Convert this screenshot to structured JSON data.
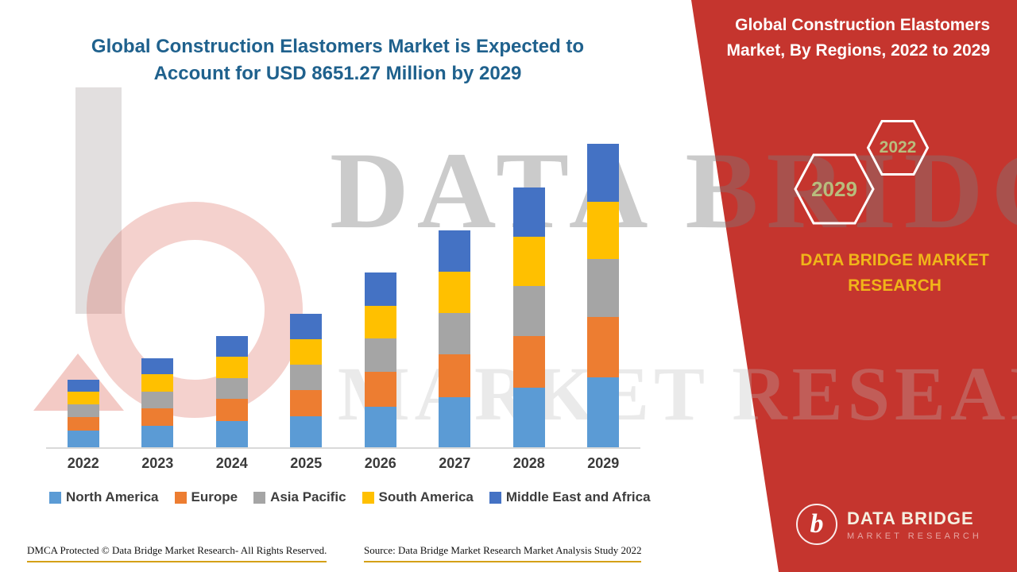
{
  "header": {
    "left_title": "Global Construction Elastomers Market is Expected to Account for USD 8651.27 Million by 2029"
  },
  "chart_data": {
    "type": "bar",
    "stacked": true,
    "unit": "USD Million",
    "categories": [
      "2022",
      "2023",
      "2024",
      "2025",
      "2026",
      "2027",
      "2028",
      "2029"
    ],
    "series": [
      {
        "name": "North America",
        "color": "#5b9bd5",
        "values": [
          480,
          610,
          745,
          880,
          1150,
          1420,
          1700,
          1990
        ]
      },
      {
        "name": "Europe",
        "color": "#ed7d31",
        "values": [
          385,
          505,
          635,
          760,
          1000,
          1240,
          1480,
          1730
        ]
      },
      {
        "name": "Asia Pacific",
        "color": "#a5a5a5",
        "values": [
          365,
          480,
          600,
          725,
          945,
          1175,
          1410,
          1645
        ]
      },
      {
        "name": "South America",
        "color": "#ffc000",
        "values": [
          365,
          480,
          600,
          720,
          945,
          1175,
          1405,
          1645
        ]
      },
      {
        "name": "Middle East and Africa",
        "color": "#4472c4",
        "values": [
          330,
          462,
          591,
          720,
          943,
          1173,
          1412,
          1641.27
        ]
      }
    ],
    "totals": [
      1925,
      2537,
      3171,
      3805,
      4983,
      6183,
      7407,
      8651.27
    ],
    "title": "Global Construction Elastomers Market, By Regions, 2022 to 2029",
    "xlabel": "",
    "ylabel": "",
    "ylim": [
      0,
      8651.27
    ],
    "grid": false,
    "legend_position": "bottom"
  },
  "right_panel": {
    "title": "Global Construction Elastomers Market, By Regions, 2022 to 2029",
    "hexagon_years": [
      "2029",
      "2022"
    ],
    "brand_name": "DATA BRIDGE MARKET RESEARCH"
  },
  "logo": {
    "mark": "b",
    "name": "DATA BRIDGE",
    "tagline": "MARKET RESEARCH"
  },
  "watermark": {
    "line1": "DATA BRIDGE",
    "line2": "MARKET RESEARCH"
  },
  "footer": {
    "dmca": "DMCA Protected © Data Bridge Market Research- All Rights Reserved.",
    "source": "Source: Data Bridge Market Research Market Analysis Study 2022"
  },
  "colors": {
    "panel_red": "#c5352e",
    "title_blue": "#1f618d",
    "brand_gold": "#f0b519",
    "hexagon_label": "#b8bd7d",
    "underline_gold": "#d4a017"
  }
}
